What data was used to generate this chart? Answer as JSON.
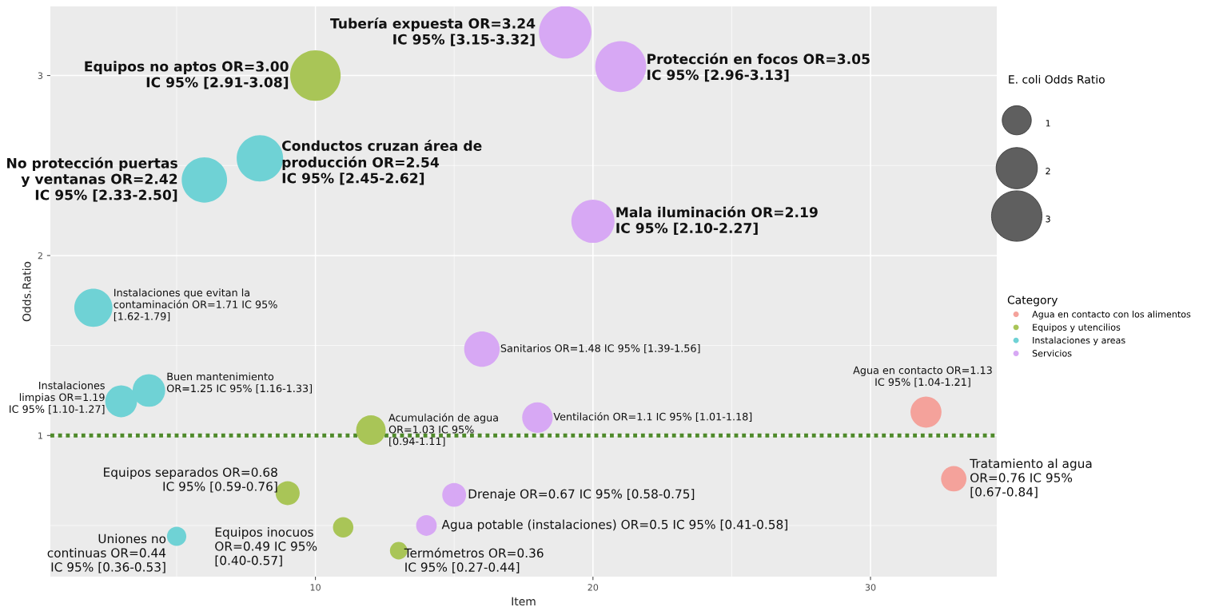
{
  "chart_data": {
    "type": "bubble",
    "xlabel": "Item",
    "ylabel": "Odds.Ratio",
    "legend_title": "Category",
    "xlim": [
      0.45,
      34.55
    ],
    "ylim": [
      0.216,
      3.384
    ],
    "xticks": [
      10,
      20,
      30
    ],
    "yticks": [
      1,
      2,
      3
    ],
    "grid": true,
    "legend": "right",
    "size_legend": [
      1,
      2,
      3
    ],
    "series": [
      {
        "name": "Agua en contacto con los alimentos",
        "color": "#f4a29b",
        "x": [
          32,
          33
        ],
        "values": [
          1.13,
          0.76
        ],
        "sizes": [
          1.13,
          0.76
        ]
      },
      {
        "name": "Equipos y utencilios",
        "color": "#a9c557",
        "x": [
          9,
          10,
          11,
          12,
          13
        ],
        "values": [
          0.68,
          3.0,
          0.49,
          1.03,
          0.36
        ],
        "sizes": [
          0.68,
          3.0,
          0.49,
          1.03,
          0.36
        ]
      },
      {
        "name": "Instalaciones y areas",
        "color": "#6fd2d5",
        "x": [
          2,
          3,
          4,
          5,
          6,
          8
        ],
        "values": [
          1.71,
          1.19,
          1.25,
          0.44,
          2.42,
          2.54
        ],
        "sizes": [
          1.71,
          1.19,
          1.25,
          0.44,
          2.42,
          2.54
        ]
      },
      {
        "name": "Servicios",
        "color": "#d7a8f4",
        "x": [
          14,
          15,
          16,
          18,
          19,
          20,
          21
        ],
        "values": [
          0.5,
          0.67,
          1.48,
          1.1,
          3.24,
          2.19,
          3.05
        ],
        "sizes": [
          0.5,
          0.67,
          1.48,
          1.1,
          3.24,
          2.19,
          3.05
        ]
      }
    ],
    "ref_lines": [
      {
        "axis": "y",
        "value": 1,
        "color": "#4f8a2b",
        "line_style": "dotted"
      }
    ],
    "annotations": [
      "E. coli Odds Ratio",
      {
        "text": "Tubería expuesta OR=3.24\nIC 95% [3.15-3.32]",
        "x": 19,
        "y": 3.24
      },
      {
        "text": "Protección en focos OR=3.05\nIC 95% [2.96-3.13]",
        "x": 21,
        "y": 3.05
      },
      {
        "text": "Equipos no aptos OR=3.00\nIC 95% [2.91-3.08]",
        "x": 10,
        "y": 3.0
      },
      {
        "text": "Conductos cruzan área de\nproducción OR=2.54\nIC 95% [2.45-2.62]",
        "x": 8,
        "y": 2.54
      },
      {
        "text": "No protección puertas\ny ventanas OR=2.42\nIC 95% [2.33-2.50]",
        "x": 6,
        "y": 2.42
      },
      {
        "text": "Mala iluminación OR=2.19\nIC 95% [2.10-2.27]",
        "x": 20,
        "y": 2.19
      },
      {
        "text": "Instalaciones que evitan la\ncontaminación OR=1.71 IC 95%\n[1.62-1.79]",
        "x": 2,
        "y": 1.71
      },
      {
        "text": "Sanitarios OR=1.48 IC 95% [1.39-1.56]",
        "x": 16,
        "y": 1.48
      },
      {
        "text": "Instalaciones\nlimpias OR=1.19\nIC 95% [1.10-1.27]",
        "x": 3,
        "y": 1.19
      },
      {
        "text": "Buen mantenimiento\nOR=1.25 IC 95% [1.16-1.33]",
        "x": 4,
        "y": 1.25
      },
      {
        "text": "Agua en contacto OR=1.13\nIC 95% [1.04-1.21]",
        "x": 32,
        "y": 1.13
      },
      {
        "text": "Acumulación de agua\nOR=1.03 IC 95%\n[0.94-1.11]",
        "x": 12,
        "y": 1.03
      },
      {
        "text": "Ventilación OR=1.1 IC 95% [1.01-1.18]",
        "x": 18,
        "y": 1.1
      },
      {
        "text": "Tratamiento al agua\nOR=0.76 IC 95%\n[0.67-0.84]",
        "x": 33,
        "y": 0.76
      },
      {
        "text": "Equipos separados OR=0.68\nIC 95% [0.59-0.76]",
        "x": 9,
        "y": 0.68
      },
      {
        "text": "Drenaje OR=0.67 IC 95% [0.58-0.75]",
        "x": 15,
        "y": 0.67
      },
      {
        "text": "Uniones no\ncontinuas OR=0.44\nIC 95% [0.36-0.53]",
        "x": 5,
        "y": 0.44
      },
      {
        "text": "Equipos inocuos\nOR=0.49 IC 95%\n[0.40-0.57]",
        "x": 11,
        "y": 0.49
      },
      {
        "text": "Agua potable (instalaciones) OR=0.5 IC 95% [0.41-0.58]",
        "x": 14,
        "y": 0.5
      },
      {
        "text": "Termómetros OR=0.36\nIC 95% [0.27-0.44]",
        "x": 13,
        "y": 0.36
      }
    ]
  }
}
